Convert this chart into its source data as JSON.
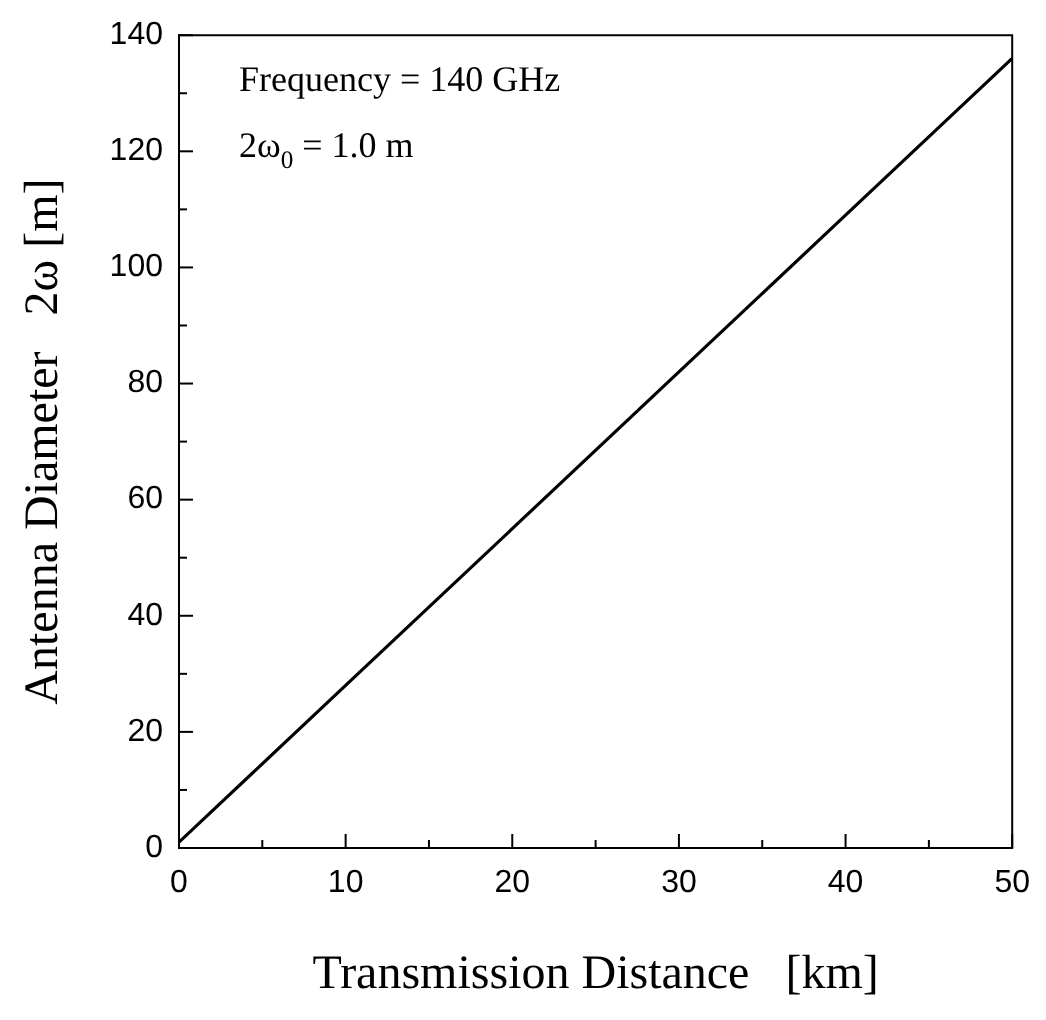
{
  "chart_data": {
    "type": "line",
    "xlabel": "Transmission Distance   [km]",
    "ylabel": "Antenna Diameter   2ω [m]",
    "annotations": [
      "Frequency = 140 GHz",
      "2ω$_{0}$ = 1.0 m"
    ],
    "x": [
      0,
      10,
      20,
      30,
      40,
      50
    ],
    "series": [
      {
        "color": "#000000",
        "values": [
          1,
          28,
          55,
          82,
          109,
          136
        ]
      }
    ],
    "xlim": [
      0,
      50
    ],
    "ylim": [
      0,
      140
    ],
    "xticks": [
      0,
      {
        "value": 5,
        "label": null
      },
      10,
      {
        "value": 15,
        "label": null
      },
      20,
      {
        "value": 25,
        "label": null
      },
      30,
      {
        "value": 35,
        "label": null
      },
      40,
      {
        "value": 45,
        "label": null
      },
      50
    ],
    "yticks": [
      0,
      {
        "value": 10,
        "label": null
      },
      20,
      {
        "value": 30,
        "label": null
      },
      40,
      {
        "value": 50,
        "label": null
      },
      60,
      {
        "value": 70,
        "label": null
      },
      80,
      {
        "value": 90,
        "label": null
      },
      100,
      {
        "value": 110,
        "label": null
      },
      120,
      {
        "value": 130,
        "label": null
      },
      140
    ],
    "grid": false,
    "legend": false,
    "marker": "none",
    "line_style": "solid"
  }
}
